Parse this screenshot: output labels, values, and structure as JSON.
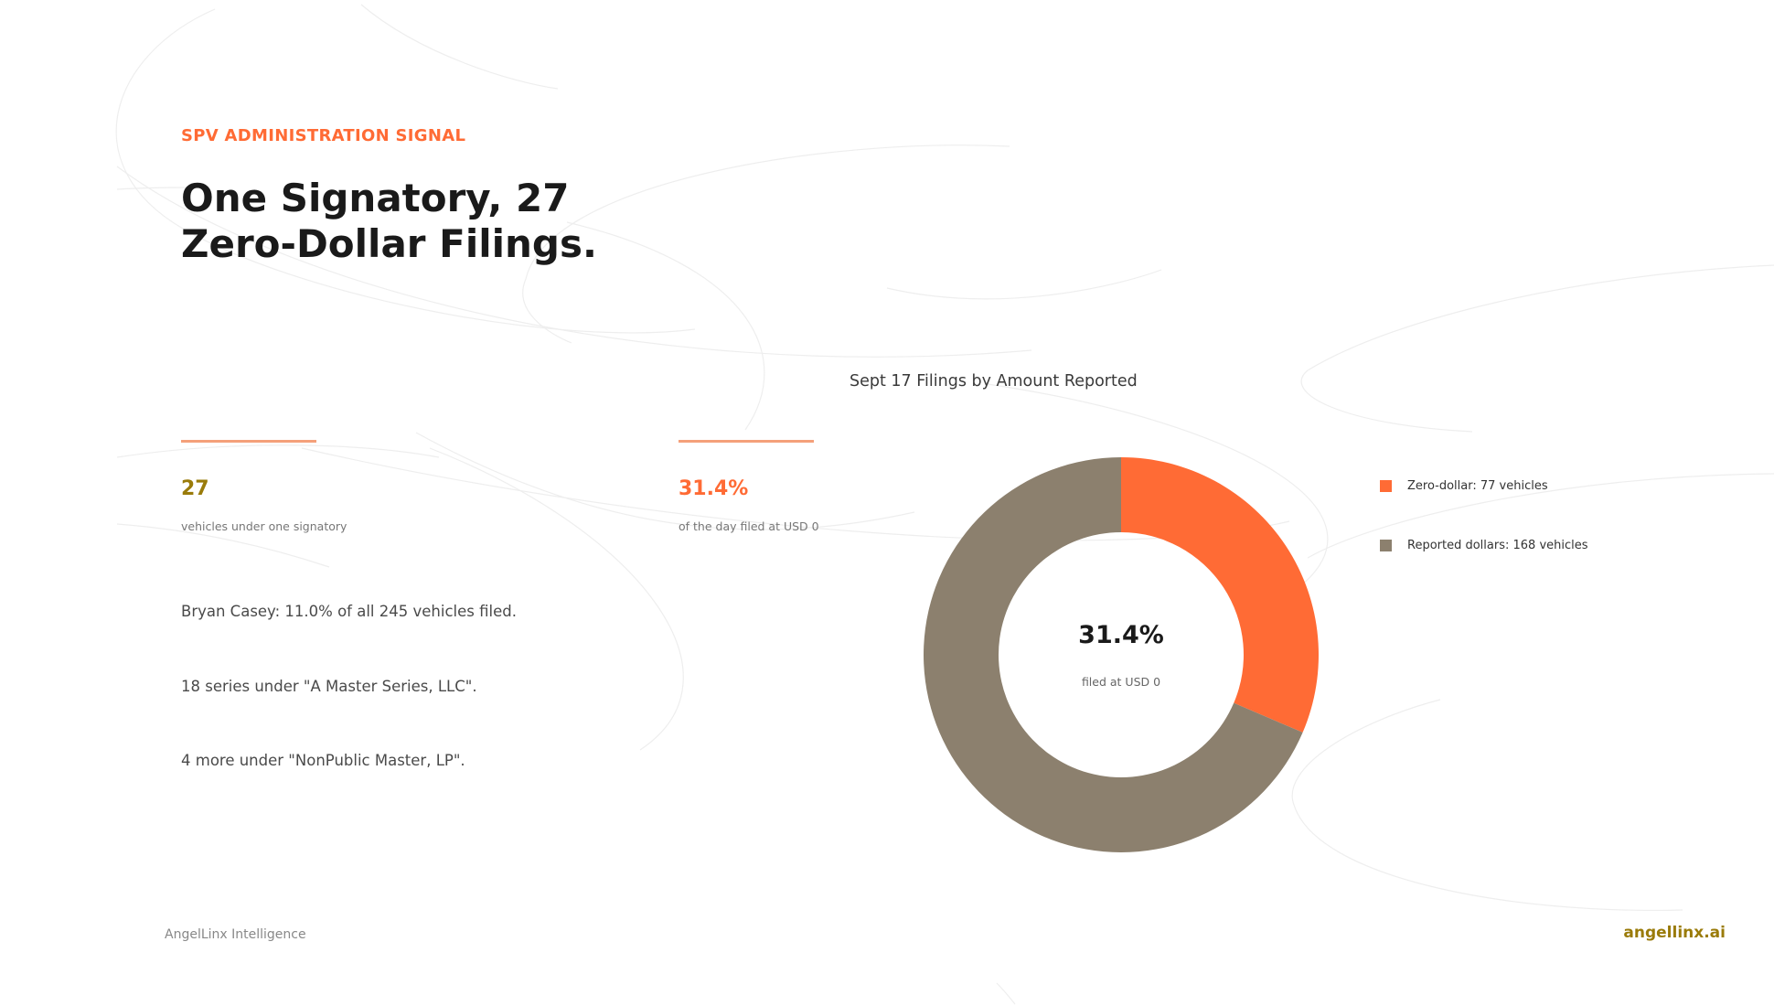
{
  "header": {
    "eyebrow": "SPV ADMINISTRATION SIGNAL",
    "title_lines": [
      "One Signatory, 27",
      "Zero-Dollar Filings."
    ]
  },
  "stats": [
    {
      "value": "27",
      "label": "vehicles under one signatory",
      "color": "#9a7b0a"
    },
    {
      "value": "31.4%",
      "label": "of the day filed at USD 0",
      "color": "#ff6b35"
    }
  ],
  "facts": [
    "Bryan Casey: 11.0% of all 245 vehicles filed.",
    "18 series under \"A Master Series, LLC\".",
    "4 more under \"NonPublic Master, LP\"."
  ],
  "footer": {
    "left": "AngelLinx Intelligence",
    "right": "angellinx.ai"
  },
  "colors": {
    "accent": "#ff6b35",
    "gold": "#9a7b0a",
    "taupe": "#8c806e",
    "rule": "#f4a07a"
  },
  "chart_data": {
    "type": "pie",
    "title": "Sept 17 Filings by Amount Reported",
    "donut": true,
    "center_value": "31.4%",
    "center_label": "filed at USD 0",
    "legend_position": "right",
    "slices": [
      {
        "label": "Zero-dollar: 77 vehicles",
        "value": 77,
        "color": "#ff6b35"
      },
      {
        "label": "Reported dollars: 168 vehicles",
        "value": 168,
        "color": "#8c806e"
      }
    ]
  }
}
